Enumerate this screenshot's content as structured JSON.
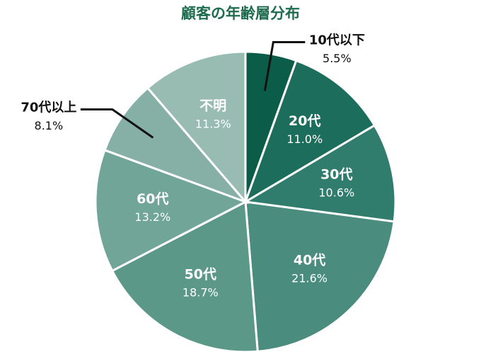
{
  "chart_data": {
    "type": "pie",
    "title": "顧客の年齢層分布",
    "categories": [
      "10代以下",
      "20代",
      "30代",
      "40代",
      "50代",
      "60代",
      "70代以上",
      "不明"
    ],
    "values": [
      5.5,
      11.0,
      10.6,
      21.6,
      18.7,
      13.2,
      8.1,
      11.3
    ],
    "value_labels": [
      "5.5%",
      "11.0%",
      "10.6%",
      "21.6%",
      "18.7%",
      "13.2%",
      "8.1%",
      "11.3%"
    ],
    "colors": [
      "#0b5c48",
      "#1d6d5d",
      "#317d6d",
      "#4a8c7e",
      "#5c9888",
      "#70a597",
      "#86b0a6",
      "#98bbb2"
    ]
  }
}
